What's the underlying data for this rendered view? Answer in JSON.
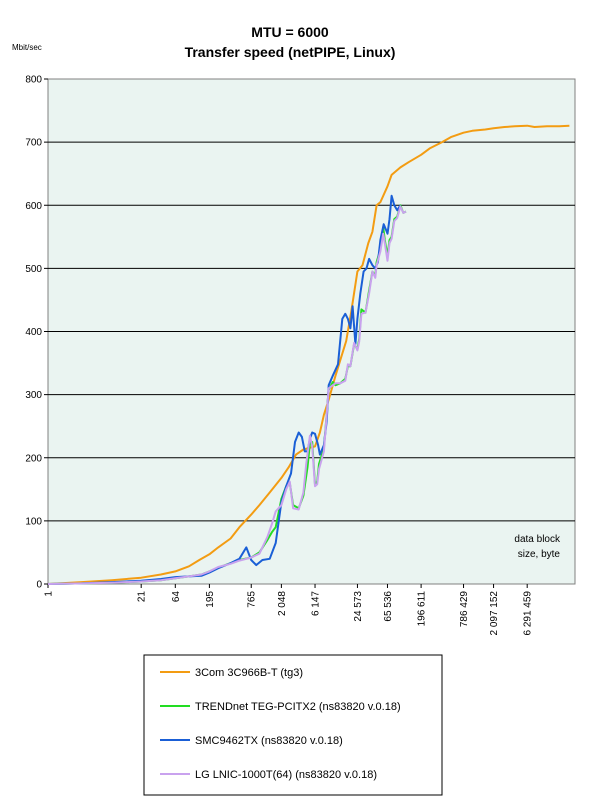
{
  "chart_data": {
    "type": "line",
    "title": "MTU = 6000",
    "subtitle": "Transfer speed (netPIPE, Linux)",
    "ylabel": "Mbit/sec",
    "xlabel": "",
    "annotation": [
      "data block",
      "size, byte"
    ],
    "x_scale": "log",
    "ylim": [
      0,
      800
    ],
    "y_ticks": [
      0,
      100,
      200,
      300,
      400,
      500,
      600,
      700,
      800
    ],
    "x_ticks": [
      {
        "value": 1,
        "label": "1"
      },
      {
        "value": 21,
        "label": "21"
      },
      {
        "value": 64,
        "label": "64"
      },
      {
        "value": 195,
        "label": "195"
      },
      {
        "value": 765,
        "label": "765"
      },
      {
        "value": 2048,
        "label": "2 048"
      },
      {
        "value": 6147,
        "label": "6 147"
      },
      {
        "value": 24573,
        "label": "24 573"
      },
      {
        "value": 65536,
        "label": "65 536"
      },
      {
        "value": 196611,
        "label": "196 611"
      },
      {
        "value": 786429,
        "label": "786 429"
      },
      {
        "value": 2097152,
        "label": "2 097 152"
      },
      {
        "value": 6291459,
        "label": "6 291 459"
      }
    ],
    "xlim": [
      1,
      30000000
    ],
    "grid": "horizontal",
    "plot_background": "#eaf4f1",
    "series": [
      {
        "name": "3Com 3C966B-T (tg3)",
        "color": "#f39c12",
        "points": [
          [
            1,
            0
          ],
          [
            3,
            3
          ],
          [
            8,
            6
          ],
          [
            21,
            10
          ],
          [
            40,
            15
          ],
          [
            64,
            20
          ],
          [
            100,
            28
          ],
          [
            140,
            38
          ],
          [
            195,
            47
          ],
          [
            260,
            58
          ],
          [
            390,
            72
          ],
          [
            520,
            90
          ],
          [
            765,
            110
          ],
          [
            1000,
            125
          ],
          [
            1400,
            145
          ],
          [
            2048,
            168
          ],
          [
            2600,
            185
          ],
          [
            3300,
            205
          ],
          [
            4200,
            213
          ],
          [
            6147,
            218
          ],
          [
            7200,
            240
          ],
          [
            8200,
            268
          ],
          [
            9600,
            292
          ],
          [
            12000,
            330
          ],
          [
            14500,
            360
          ],
          [
            17000,
            385
          ],
          [
            20000,
            430
          ],
          [
            24573,
            495
          ],
          [
            29000,
            505
          ],
          [
            35000,
            540
          ],
          [
            40000,
            558
          ],
          [
            46000,
            600
          ],
          [
            52000,
            605
          ],
          [
            65536,
            630
          ],
          [
            75000,
            648
          ],
          [
            100000,
            660
          ],
          [
            130000,
            668
          ],
          [
            196611,
            680
          ],
          [
            260000,
            690
          ],
          [
            390000,
            700
          ],
          [
            520000,
            708
          ],
          [
            786429,
            715
          ],
          [
            1048576,
            718
          ],
          [
            1600000,
            720
          ],
          [
            2097152,
            722
          ],
          [
            3000000,
            724
          ],
          [
            4194304,
            725
          ],
          [
            6291459,
            726
          ],
          [
            8000000,
            724
          ],
          [
            12000000,
            725
          ],
          [
            18000000,
            725
          ],
          [
            25000000,
            726
          ]
        ]
      },
      {
        "name": "TRENDnet TEG-PCITX2 (ns83820 v.0.18)",
        "color": "#22dd22",
        "points": [
          [
            1,
            0
          ],
          [
            3,
            1
          ],
          [
            8,
            2
          ],
          [
            21,
            4
          ],
          [
            40,
            6
          ],
          [
            64,
            9
          ],
          [
            100,
            12
          ],
          [
            150,
            15
          ],
          [
            195,
            20
          ],
          [
            260,
            26
          ],
          [
            390,
            33
          ],
          [
            520,
            38
          ],
          [
            765,
            42
          ],
          [
            1000,
            50
          ],
          [
            1300,
            70
          ],
          [
            1500,
            82
          ],
          [
            1700,
            90
          ],
          [
            2048,
            135
          ],
          [
            2400,
            155
          ],
          [
            2700,
            160
          ],
          [
            3000,
            125
          ],
          [
            3600,
            120
          ],
          [
            4200,
            140
          ],
          [
            4800,
            185
          ],
          [
            5200,
            222
          ],
          [
            5600,
            225
          ],
          [
            6147,
            158
          ],
          [
            6600,
            162
          ],
          [
            7000,
            190
          ],
          [
            8200,
            215
          ],
          [
            9600,
            308
          ],
          [
            11000,
            320
          ],
          [
            12000,
            315
          ],
          [
            14000,
            318
          ],
          [
            16500,
            325
          ],
          [
            18000,
            345
          ],
          [
            19500,
            345
          ],
          [
            22000,
            380
          ],
          [
            24573,
            372
          ],
          [
            26000,
            388
          ],
          [
            28000,
            435
          ],
          [
            32000,
            430
          ],
          [
            36000,
            465
          ],
          [
            40000,
            495
          ],
          [
            44000,
            488
          ],
          [
            46000,
            510
          ],
          [
            52000,
            530
          ],
          [
            57000,
            565
          ],
          [
            60000,
            545
          ],
          [
            65536,
            520
          ],
          [
            70000,
            545
          ],
          [
            75000,
            550
          ],
          [
            82000,
            578
          ],
          [
            90000,
            582
          ],
          [
            100000,
            600
          ],
          [
            110000,
            588
          ],
          [
            120000,
            590
          ]
        ]
      },
      {
        "name": "SMC9462TX (ns83820 v.0.18)",
        "color": "#1a5fd6",
        "points": [
          [
            1,
            0
          ],
          [
            3,
            1
          ],
          [
            8,
            3
          ],
          [
            21,
            5
          ],
          [
            40,
            8
          ],
          [
            64,
            11
          ],
          [
            100,
            12
          ],
          [
            150,
            13
          ],
          [
            195,
            18
          ],
          [
            260,
            25
          ],
          [
            390,
            33
          ],
          [
            520,
            40
          ],
          [
            650,
            58
          ],
          [
            765,
            38
          ],
          [
            900,
            30
          ],
          [
            1100,
            38
          ],
          [
            1400,
            40
          ],
          [
            1700,
            65
          ],
          [
            2048,
            130
          ],
          [
            2400,
            155
          ],
          [
            2800,
            175
          ],
          [
            3200,
            225
          ],
          [
            3600,
            240
          ],
          [
            4000,
            233
          ],
          [
            4400,
            210
          ],
          [
            4800,
            210
          ],
          [
            5200,
            230
          ],
          [
            5600,
            240
          ],
          [
            6147,
            238
          ],
          [
            6800,
            220
          ],
          [
            7200,
            205
          ],
          [
            8200,
            220
          ],
          [
            9000,
            258
          ],
          [
            9600,
            315
          ],
          [
            11000,
            330
          ],
          [
            13000,
            348
          ],
          [
            15000,
            420
          ],
          [
            16500,
            428
          ],
          [
            18000,
            420
          ],
          [
            19500,
            405
          ],
          [
            21000,
            440
          ],
          [
            23000,
            380
          ],
          [
            24573,
            420
          ],
          [
            27000,
            460
          ],
          [
            30000,
            495
          ],
          [
            33000,
            500
          ],
          [
            36000,
            515
          ],
          [
            40000,
            505
          ],
          [
            44000,
            500
          ],
          [
            48000,
            510
          ],
          [
            52000,
            545
          ],
          [
            58000,
            570
          ],
          [
            63000,
            560
          ],
          [
            65536,
            555
          ],
          [
            70000,
            578
          ],
          [
            75000,
            615
          ],
          [
            82000,
            600
          ],
          [
            90000,
            592
          ],
          [
            100000,
            600
          ]
        ]
      },
      {
        "name": "LG LNIC-1000T(64) (ns83820 v.0.18)",
        "color": "#c9a2ee",
        "points": [
          [
            1,
            0
          ],
          [
            3,
            1
          ],
          [
            8,
            2
          ],
          [
            21,
            4
          ],
          [
            40,
            6
          ],
          [
            64,
            9
          ],
          [
            100,
            12
          ],
          [
            150,
            15
          ],
          [
            195,
            20
          ],
          [
            260,
            27
          ],
          [
            390,
            32
          ],
          [
            520,
            37
          ],
          [
            765,
            42
          ],
          [
            1000,
            48
          ],
          [
            1300,
            75
          ],
          [
            1500,
            95
          ],
          [
            1700,
            115
          ],
          [
            2048,
            125
          ],
          [
            2400,
            150
          ],
          [
            2700,
            162
          ],
          [
            3000,
            120
          ],
          [
            3600,
            118
          ],
          [
            4200,
            145
          ],
          [
            4600,
            190
          ],
          [
            5200,
            235
          ],
          [
            5600,
            218
          ],
          [
            6147,
            155
          ],
          [
            6600,
            158
          ],
          [
            7000,
            182
          ],
          [
            8200,
            210
          ],
          [
            9600,
            310
          ],
          [
            11000,
            315
          ],
          [
            12000,
            318
          ],
          [
            14000,
            318
          ],
          [
            16500,
            322
          ],
          [
            18000,
            348
          ],
          [
            19500,
            345
          ],
          [
            22000,
            382
          ],
          [
            24573,
            370
          ],
          [
            26000,
            384
          ],
          [
            28000,
            428
          ],
          [
            32000,
            430
          ],
          [
            36000,
            460
          ],
          [
            40000,
            495
          ],
          [
            44000,
            485
          ],
          [
            46000,
            505
          ],
          [
            52000,
            527
          ],
          [
            57000,
            555
          ],
          [
            60000,
            540
          ],
          [
            65536,
            512
          ],
          [
            70000,
            540
          ],
          [
            75000,
            547
          ],
          [
            82000,
            575
          ],
          [
            90000,
            580
          ],
          [
            100000,
            598
          ],
          [
            110000,
            588
          ],
          [
            120000,
            590
          ]
        ]
      }
    ]
  }
}
